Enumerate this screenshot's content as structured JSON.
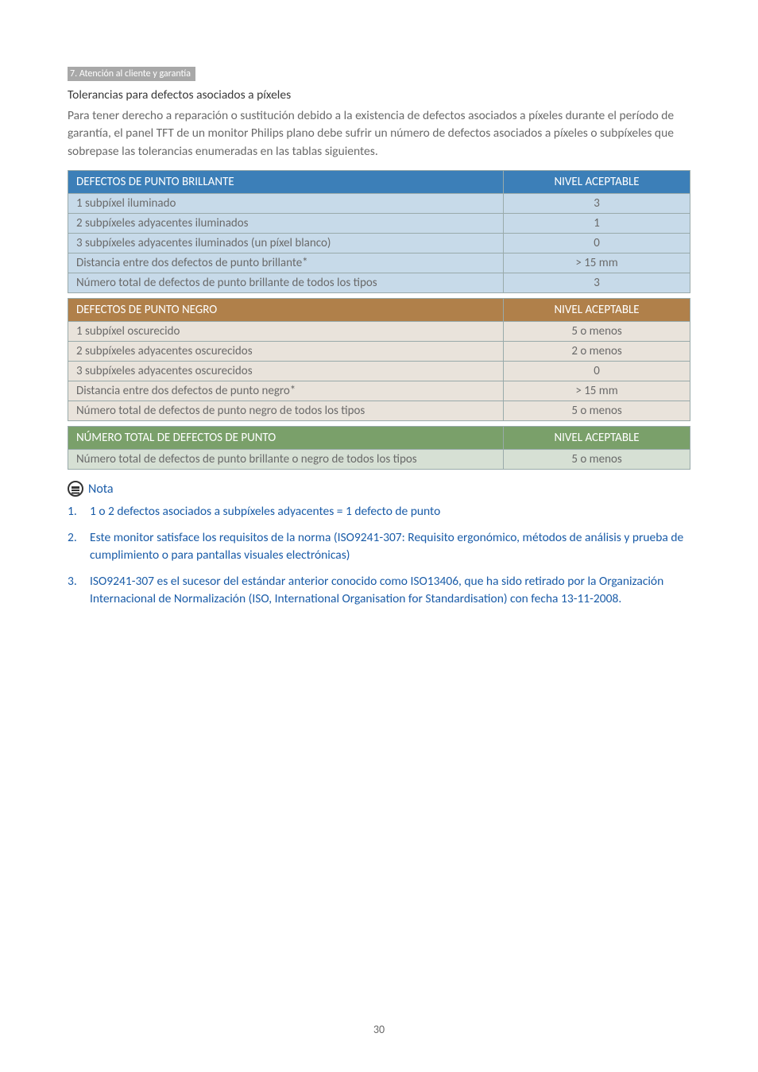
{
  "colors": {
    "breadcrumb_bg": "#a8a8a8",
    "text_dark": "#3a3a3a",
    "text_body": "#6a6a6a",
    "accent_blue": "#1a5ca8",
    "header_bright": "#3c7fb8",
    "header_dark": "#b0804a",
    "header_total": "#7aa06a",
    "row_bright": "#c7dae9",
    "row_dark": "#e9e3db",
    "row_total": "#d6e0d4",
    "cell_border": "#99aaaa"
  },
  "breadcrumb": "7. Atención al cliente y garantía",
  "section_title": "Tolerancias para defectos asociados a píxeles",
  "intro": "Para tener derecho a reparación o sustitución debido a la existencia de defectos asociados a píxeles durante el período de garantía, el panel TFT de un monitor Philips plano debe sufrir un número de defectos asociados a píxeles o subpíxeles que sobrepase las tolerancias enumeradas en las tablas siguientes.",
  "tables": [
    {
      "header_bg": "#3c7fb8",
      "row_class": "bright-row",
      "header": {
        "label": "DEFECTOS DE PUNTO BRILLANTE",
        "value": "NIVEL ACEPTABLE"
      },
      "rows": [
        {
          "label": "1 subpíxel iluminado",
          "value": "3"
        },
        {
          "label": "2 subpíxeles adyacentes iluminados",
          "value": "1"
        },
        {
          "label": "3 subpíxeles adyacentes iluminados (un píxel blanco)",
          "value": "0"
        },
        {
          "label": "Distancia entre dos defectos de punto brillante*",
          "value": "> 15 mm"
        },
        {
          "label": "Número total de defectos de punto brillante de todos los tipos",
          "value": "3"
        }
      ]
    },
    {
      "header_bg": "#b0804a",
      "row_class": "dark-row",
      "header": {
        "label": "DEFECTOS DE PUNTO NEGRO",
        "value": "NIVEL ACEPTABLE"
      },
      "rows": [
        {
          "label": "1 subpíxel oscurecido",
          "value": "5 o menos"
        },
        {
          "label": "2 subpíxeles adyacentes oscurecidos",
          "value": "2 o menos"
        },
        {
          "label": "3 subpíxeles adyacentes oscurecidos",
          "value": "0"
        },
        {
          "label": "Distancia entre dos defectos de punto negro*",
          "value": "> 15 mm"
        },
        {
          "label": "Número total de defectos de punto negro de todos los tipos",
          "value": "5 o menos"
        }
      ]
    },
    {
      "header_bg": "#7aa06a",
      "row_class": "total-row",
      "header": {
        "label": "NÚMERO TOTAL DE DEFECTOS DE PUNTO",
        "value": "NIVEL ACEPTABLE"
      },
      "rows": [
        {
          "label": "Número total de defectos de punto brillante o negro de todos los tipos",
          "value": "5 o menos"
        }
      ]
    }
  ],
  "note_label": "Nota",
  "notes": [
    "1 o 2 defectos asociados a subpíxeles adyacentes = 1 defecto de punto",
    "Este monitor satisface los requisitos de la norma (ISO9241-307: Requisito ergonómico, métodos de análisis y prueba de cumplimiento o para pantallas visuales electrónicas)",
    "ISO9241-307 es el sucesor del estándar anterior conocido como ISO13406, que ha sido retirado por la Organización Internacional de Normalización (ISO, International Organisation for Standardisation) con fecha 13-11-2008."
  ],
  "page_number": "30"
}
